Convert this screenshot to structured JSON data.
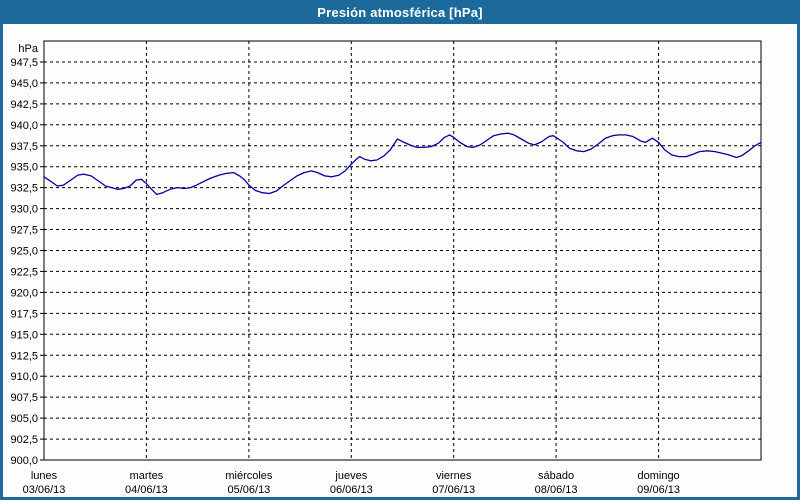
{
  "window": {
    "title": "Presión atmosférica [hPa]"
  },
  "colors": {
    "titlebar": "#1c699c",
    "frame": "#1c699c",
    "line": "#0000a0",
    "grid": "#000000",
    "background": "#fdfdfb",
    "text": "#000000"
  },
  "chart_data": {
    "type": "line",
    "title": "Presión atmosférica [hPa]",
    "unit_label": "hPa",
    "ylabel": "hPa",
    "xlabel": "",
    "legend": "none",
    "grid": "dashed",
    "ylim": [
      900,
      950
    ],
    "ytick_step": 2.5,
    "yticks": [
      {
        "value": 947.5,
        "label": "947,5"
      },
      {
        "value": 945.0,
        "label": "945,0"
      },
      {
        "value": 942.5,
        "label": "942,5"
      },
      {
        "value": 940.0,
        "label": "940,0"
      },
      {
        "value": 937.5,
        "label": "937,5"
      },
      {
        "value": 935.0,
        "label": "935,0"
      },
      {
        "value": 932.5,
        "label": "932,5"
      },
      {
        "value": 930.0,
        "label": "930,0"
      },
      {
        "value": 927.5,
        "label": "927,5"
      },
      {
        "value": 925.0,
        "label": "925,0"
      },
      {
        "value": 922.5,
        "label": "922,5"
      },
      {
        "value": 920.0,
        "label": "920,0"
      },
      {
        "value": 917.5,
        "label": "917,5"
      },
      {
        "value": 915.0,
        "label": "915,0"
      },
      {
        "value": 912.5,
        "label": "912,5"
      },
      {
        "value": 910.0,
        "label": "910,0"
      },
      {
        "value": 907.5,
        "label": "907,5"
      },
      {
        "value": 905.0,
        "label": "905,0"
      },
      {
        "value": 902.5,
        "label": "902,5"
      },
      {
        "value": 900.0,
        "label": "900,0"
      }
    ],
    "xlim_days": [
      0,
      7
    ],
    "days": [
      {
        "name": "lunes",
        "date": "03/06/13"
      },
      {
        "name": "martes",
        "date": "04/06/13"
      },
      {
        "name": "miércoles",
        "date": "05/06/13"
      },
      {
        "name": "jueves",
        "date": "06/06/13"
      },
      {
        "name": "viernes",
        "date": "07/06/13"
      },
      {
        "name": "sábado",
        "date": "08/06/13"
      },
      {
        "name": "domingo",
        "date": "09/06/13"
      }
    ],
    "series": [
      {
        "name": "Presión atmosférica",
        "x_days": [
          0,
          0.06,
          0.13,
          0.19,
          0.25,
          0.33,
          0.39,
          0.46,
          0.53,
          0.6,
          0.66,
          0.72,
          0.78,
          0.84,
          0.9,
          0.95,
          1,
          1.05,
          1.1,
          1.16,
          1.23,
          1.3,
          1.37,
          1.43,
          1.49,
          1.57,
          1.64,
          1.71,
          1.78,
          1.85,
          1.91,
          1.96,
          2,
          2.06,
          2.13,
          2.2,
          2.27,
          2.33,
          2.4,
          2.47,
          2.54,
          2.61,
          2.67,
          2.74,
          2.81,
          2.88,
          2.94,
          3,
          3.05,
          3.08,
          3.13,
          3.19,
          3.25,
          3.32,
          3.38,
          3.45,
          3.5,
          3.57,
          3.64,
          3.71,
          3.78,
          3.85,
          3.91,
          3.96,
          4,
          4.06,
          4.13,
          4.19,
          4.26,
          4.33,
          4.39,
          4.46,
          4.53,
          4.59,
          4.66,
          4.73,
          4.79,
          4.86,
          4.93,
          4.97,
          5,
          5.07,
          5.13,
          5.2,
          5.27,
          5.34,
          5.41,
          5.48,
          5.55,
          5.61,
          5.68,
          5.75,
          5.82,
          5.87,
          5.94,
          6,
          6.06,
          6.13,
          6.2,
          6.27,
          6.34,
          6.4,
          6.48,
          6.55,
          6.62,
          6.69,
          6.76,
          6.81,
          6.87,
          6.94,
          7
        ],
        "pressure_hpa": [
          933.8,
          933.3,
          932.7,
          932.8,
          933.3,
          934.0,
          934.1,
          933.9,
          933.3,
          932.7,
          932.5,
          932.3,
          932.4,
          932.7,
          933.4,
          933.5,
          933.0,
          932.3,
          931.7,
          931.9,
          932.3,
          932.5,
          932.4,
          932.5,
          932.8,
          933.3,
          933.7,
          934.0,
          934.2,
          934.3,
          933.9,
          933.4,
          932.8,
          932.2,
          931.9,
          931.8,
          932.1,
          932.7,
          933.3,
          933.9,
          934.3,
          934.5,
          934.3,
          933.9,
          933.8,
          934.0,
          934.5,
          935.3,
          935.9,
          936.2,
          935.9,
          935.7,
          935.8,
          936.3,
          937.0,
          938.3,
          938.0,
          937.6,
          937.3,
          937.3,
          937.4,
          937.8,
          938.5,
          938.8,
          938.5,
          937.9,
          937.4,
          937.3,
          937.6,
          938.2,
          938.7,
          938.9,
          939.0,
          938.8,
          938.3,
          937.8,
          937.6,
          938.0,
          938.6,
          938.7,
          938.5,
          937.9,
          937.2,
          936.9,
          936.8,
          937.1,
          937.7,
          938.4,
          938.7,
          938.8,
          938.8,
          938.6,
          938.1,
          937.9,
          938.4,
          937.9,
          937.0,
          936.4,
          936.2,
          936.2,
          936.5,
          936.8,
          936.9,
          936.8,
          936.6,
          936.4,
          936.1,
          936.3,
          936.8,
          937.5,
          937.9
        ]
      }
    ]
  }
}
